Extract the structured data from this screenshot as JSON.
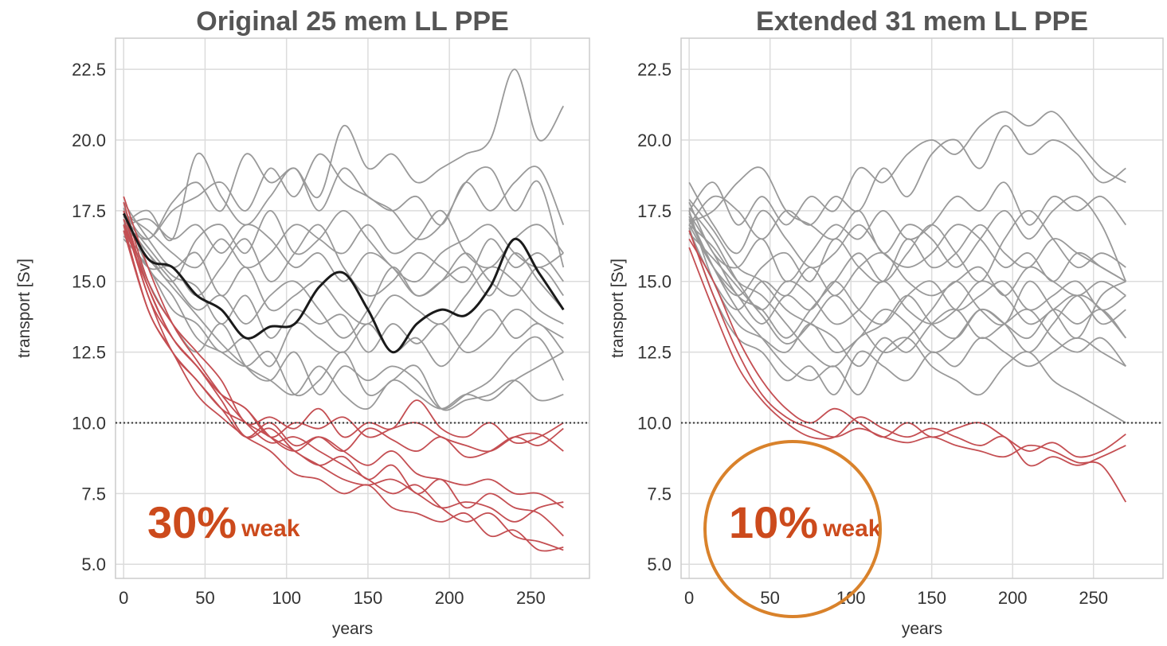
{
  "chart_data": [
    {
      "type": "line",
      "title": "Original 25 mem LL PPE",
      "xlabel": "years",
      "ylabel": "transport [Sv]",
      "annotation": "30%",
      "annotation_small": "weak",
      "hline": 10,
      "xlim": [
        -5,
        286
      ],
      "ylim": [
        4.5,
        23.6
      ],
      "xticks": [
        0,
        50,
        100,
        150,
        200,
        250
      ],
      "yticks": [
        {
          "value": 5,
          "label": "5.0"
        },
        7.5,
        {
          "value": 10,
          "label": "10.0"
        },
        12.5,
        {
          "value": 15,
          "label": "15.0"
        },
        17.5,
        {
          "value": 20,
          "label": "20.0"
        },
        22.5
      ],
      "grid": true,
      "x": [
        0,
        15,
        30,
        45,
        60,
        75,
        90,
        105,
        120,
        135,
        150,
        165,
        180,
        195,
        210,
        225,
        240,
        255,
        270
      ],
      "series": [
        {
          "color": "#999999",
          "values": [
            17.5,
            16.5,
            17.8,
            18.5,
            17.5,
            19.5,
            18.5,
            19.0,
            18.0,
            20.5,
            19.0,
            19.5,
            18.5,
            19.0,
            19.5,
            20.0,
            22.5,
            20.0,
            21.2
          ]
        },
        {
          "color": "#999999",
          "values": [
            17.0,
            17.5,
            16.5,
            19.5,
            18.0,
            17.0,
            18.0,
            19.0,
            17.5,
            19.0,
            18.0,
            17.5,
            16.5,
            17.0,
            18.5,
            19.0,
            17.5,
            18.5,
            15.5
          ]
        },
        {
          "color": "#999999",
          "values": [
            17.2,
            16.0,
            15.0,
            16.5,
            17.0,
            16.0,
            17.5,
            16.0,
            16.5,
            17.5,
            16.5,
            15.5,
            15.0,
            16.0,
            16.5,
            17.0,
            16.0,
            15.5,
            16.0
          ]
        },
        {
          "color": "#999999",
          "values": [
            16.8,
            15.5,
            15.5,
            14.5,
            15.5,
            16.5,
            15.0,
            16.0,
            17.0,
            15.5,
            14.5,
            15.0,
            16.0,
            15.5,
            15.0,
            16.5,
            15.5,
            16.0,
            15.0
          ]
        },
        {
          "color": "#999999",
          "values": [
            17.0,
            16.0,
            15.0,
            14.0,
            14.5,
            13.5,
            14.5,
            15.0,
            14.0,
            13.0,
            14.0,
            15.5,
            14.5,
            15.0,
            16.0,
            15.0,
            14.5,
            15.5,
            14.5
          ]
        },
        {
          "color": "#999999",
          "values": [
            16.5,
            15.5,
            14.0,
            13.5,
            12.5,
            13.0,
            12.0,
            13.5,
            13.0,
            12.5,
            13.5,
            12.5,
            13.0,
            12.0,
            13.0,
            14.0,
            13.0,
            13.5,
            12.5
          ]
        },
        {
          "color": "#999999",
          "values": [
            17.2,
            15.0,
            13.5,
            12.5,
            13.5,
            12.0,
            11.5,
            12.5,
            11.0,
            12.0,
            11.5,
            12.0,
            11.5,
            10.5,
            11.0,
            11.5,
            12.5,
            13.0,
            11.5
          ]
        },
        {
          "color": "#999999",
          "values": [
            16.6,
            15.8,
            14.8,
            13.8,
            12.8,
            12.0,
            11.5,
            11.0,
            12.0,
            11.0,
            10.5,
            11.5,
            11.0,
            10.5,
            11.0,
            10.8,
            11.5,
            12.0,
            12.5
          ]
        },
        {
          "color": "#999999",
          "values": [
            17.8,
            16.5,
            15.5,
            16.0,
            14.5,
            15.5,
            14.0,
            14.5,
            15.0,
            14.0,
            13.5,
            14.5,
            14.0,
            13.5,
            14.5,
            15.5,
            15.0,
            14.0,
            13.5
          ]
        },
        {
          "color": "#999999",
          "values": [
            17.4,
            16.8,
            16.0,
            15.5,
            16.5,
            15.5,
            16.0,
            17.0,
            16.5,
            16.0,
            17.0,
            16.0,
            16.5,
            17.5,
            16.0,
            15.5,
            16.5,
            17.0,
            16.0
          ]
        },
        {
          "color": "#999999",
          "values": [
            17.6,
            15.5,
            14.5,
            13.0,
            12.5,
            12.0,
            12.5,
            11.0,
            11.5,
            12.5,
            11.0,
            11.5,
            12.0,
            10.5,
            10.8,
            11.0,
            11.5,
            10.8,
            11.0
          ]
        },
        {
          "color": "#999999",
          "values": [
            17.0,
            16.5,
            17.5,
            18.0,
            18.5,
            17.5,
            19.0,
            18.0,
            19.5,
            18.5,
            18.0,
            17.5,
            18.0,
            17.0,
            18.5,
            17.5,
            18.5,
            19.0,
            17.0
          ]
        },
        {
          "color": "#999999",
          "values": [
            17.3,
            16.2,
            15.2,
            14.8,
            13.5,
            14.5,
            13.0,
            14.0,
            13.5,
            13.8,
            12.5,
            13.5,
            12.8,
            13.5,
            12.5,
            13.0,
            14.0,
            13.5,
            13.0
          ]
        },
        {
          "color": "#999999",
          "values": [
            16.9,
            17.2,
            16.5,
            17.0,
            16.0,
            17.0,
            16.5,
            15.5,
            16.0,
            15.0,
            16.0,
            15.5,
            14.5,
            15.0,
            15.5,
            14.5,
            16.0,
            15.0,
            14.0
          ]
        },
        {
          "color": "#c44e52",
          "values": [
            17.8,
            15.0,
            13.5,
            12.5,
            11.5,
            10.0,
            10.2,
            9.8,
            10.5,
            9.5,
            10.0,
            9.8,
            10.8,
            9.8,
            9.5,
            10.0,
            9.3,
            9.5,
            10.0
          ]
        },
        {
          "color": "#c44e52",
          "values": [
            17.5,
            14.8,
            13.0,
            12.0,
            11.0,
            10.5,
            9.5,
            10.0,
            9.8,
            10.2,
            9.5,
            9.8,
            10.0,
            9.5,
            9.2,
            9.0,
            9.5,
            9.6,
            9.0
          ]
        },
        {
          "color": "#c44e52",
          "values": [
            17.2,
            14.5,
            12.5,
            11.5,
            10.5,
            9.5,
            10.0,
            9.2,
            9.5,
            9.0,
            9.8,
            9.4,
            9.0,
            9.5,
            8.8,
            9.0,
            9.5,
            9.2,
            9.8
          ]
        },
        {
          "color": "#c44e52",
          "values": [
            17.0,
            14.8,
            13.0,
            12.0,
            11.0,
            10.5,
            9.5,
            9.0,
            9.5,
            9.0,
            8.5,
            9.0,
            8.2,
            8.0,
            7.8,
            8.0,
            7.5,
            7.5,
            7.0
          ]
        },
        {
          "color": "#c44e52",
          "values": [
            16.8,
            14.0,
            12.5,
            11.5,
            10.5,
            10.0,
            9.5,
            9.0,
            8.5,
            8.8,
            8.0,
            8.5,
            7.5,
            8.0,
            7.0,
            7.5,
            7.0,
            6.8,
            6.0
          ]
        },
        {
          "color": "#c44e52",
          "values": [
            17.5,
            14.5,
            13.0,
            12.0,
            10.8,
            9.5,
            9.8,
            9.0,
            8.5,
            8.0,
            7.8,
            8.0,
            7.5,
            7.0,
            7.2,
            7.0,
            6.5,
            7.0,
            7.2
          ]
        },
        {
          "color": "#c44e52",
          "values": [
            17.0,
            14.0,
            12.5,
            11.0,
            10.2,
            9.5,
            9.0,
            8.2,
            8.0,
            7.5,
            7.8,
            7.0,
            6.8,
            6.5,
            6.8,
            6.0,
            6.2,
            5.5,
            5.6
          ]
        },
        {
          "color": "#c44e52",
          "values": [
            18.0,
            15.5,
            13.5,
            12.2,
            11.0,
            10.0,
            9.3,
            9.5,
            9.0,
            8.5,
            8.0,
            7.5,
            7.8,
            7.0,
            6.5,
            6.8,
            6.0,
            5.8,
            5.5
          ]
        },
        {
          "color": "#1a1a1a",
          "values": [
            17.4,
            15.8,
            15.5,
            14.5,
            14.0,
            13.0,
            13.4,
            13.5,
            14.8,
            15.3,
            14.0,
            12.5,
            13.5,
            14.0,
            13.8,
            14.8,
            16.5,
            15.3,
            14.0
          ]
        }
      ]
    },
    {
      "type": "line",
      "title": "Extended 31 mem LL PPE",
      "xlabel": "years",
      "ylabel": "transport [Sv]",
      "annotation": "10%",
      "annotation_small": "weak",
      "hline": 10,
      "xlim": [
        -5,
        293
      ],
      "ylim": [
        4.5,
        23.6
      ],
      "xticks": [
        0,
        50,
        100,
        150,
        200,
        250
      ],
      "yticks": [
        {
          "value": 5,
          "label": "5.0"
        },
        7.5,
        {
          "value": 10,
          "label": "10.0"
        },
        12.5,
        {
          "value": 15,
          "label": "15.0"
        },
        17.5,
        {
          "value": 20,
          "label": "20.0"
        },
        22.5
      ],
      "grid": true,
      "x": [
        0,
        15,
        30,
        45,
        60,
        75,
        90,
        105,
        120,
        135,
        150,
        165,
        180,
        195,
        210,
        225,
        240,
        255,
        270
      ],
      "series": [
        {
          "color": "#999999",
          "values": [
            17.5,
            18.5,
            17.0,
            18.0,
            17.0,
            18.0,
            17.5,
            19.0,
            18.5,
            19.5,
            20.0,
            19.5,
            20.5,
            21.0,
            20.5,
            21.0,
            20.0,
            19.0,
            18.5
          ]
        },
        {
          "color": "#999999",
          "values": [
            17.0,
            18.0,
            17.5,
            16.5,
            17.5,
            17.0,
            18.0,
            17.5,
            19.0,
            18.0,
            19.5,
            20.0,
            19.0,
            20.5,
            19.5,
            20.0,
            19.5,
            18.5,
            19.0
          ]
        },
        {
          "color": "#999999",
          "values": [
            17.8,
            16.0,
            15.5,
            16.5,
            15.0,
            16.0,
            17.0,
            16.5,
            17.5,
            16.5,
            17.0,
            18.0,
            17.5,
            18.5,
            17.0,
            18.0,
            17.5,
            18.0,
            17.0
          ]
        },
        {
          "color": "#999999",
          "values": [
            17.2,
            15.5,
            14.5,
            15.5,
            16.0,
            15.0,
            16.5,
            15.5,
            15.0,
            16.5,
            15.5,
            16.0,
            17.0,
            16.0,
            15.5,
            16.5,
            16.0,
            15.5,
            15.0
          ]
        },
        {
          "color": "#999999",
          "values": [
            16.8,
            15.0,
            14.0,
            15.0,
            14.5,
            15.5,
            14.5,
            15.5,
            16.0,
            15.0,
            14.5,
            15.0,
            15.5,
            14.5,
            15.5,
            15.0,
            14.5,
            15.0,
            14.5
          ]
        },
        {
          "color": "#999999",
          "values": [
            17.0,
            15.5,
            14.5,
            13.5,
            14.5,
            14.0,
            15.0,
            14.0,
            13.5,
            14.5,
            15.0,
            14.0,
            14.5,
            15.0,
            14.0,
            14.5,
            15.0,
            14.0,
            14.5
          ]
        },
        {
          "color": "#999999",
          "values": [
            17.5,
            15.0,
            13.5,
            13.0,
            12.5,
            13.5,
            12.5,
            13.0,
            14.0,
            13.5,
            12.5,
            13.0,
            14.0,
            13.5,
            13.0,
            14.0,
            13.5,
            14.0,
            13.0
          ]
        },
        {
          "color": "#999999",
          "values": [
            16.9,
            14.5,
            13.0,
            12.5,
            11.5,
            12.0,
            11.0,
            12.5,
            12.0,
            11.5,
            12.5,
            12.0,
            13.0,
            12.5,
            12.0,
            12.5,
            13.0,
            12.5,
            12.0
          ]
        },
        {
          "color": "#999999",
          "values": [
            17.3,
            15.5,
            14.0,
            13.0,
            12.0,
            11.5,
            12.0,
            11.0,
            12.5,
            13.0,
            12.0,
            11.5,
            11.0,
            12.0,
            12.5,
            11.5,
            11.0,
            10.5,
            10.0
          ]
        },
        {
          "color": "#999999",
          "values": [
            18.5,
            17.0,
            16.0,
            17.5,
            16.5,
            15.5,
            16.0,
            17.0,
            16.0,
            15.5,
            16.0,
            17.0,
            16.5,
            15.5,
            16.0,
            15.0,
            16.0,
            15.5,
            15.0
          ]
        },
        {
          "color": "#999999",
          "values": [
            17.6,
            16.5,
            15.0,
            14.0,
            15.0,
            14.5,
            13.5,
            14.0,
            15.0,
            14.0,
            13.5,
            14.0,
            15.0,
            14.5,
            13.5,
            14.0,
            14.5,
            13.5,
            14.0
          ]
        },
        {
          "color": "#999999",
          "values": [
            17.1,
            17.5,
            18.5,
            19.0,
            17.5,
            17.0,
            16.5,
            17.5,
            16.0,
            17.0,
            16.5,
            15.5,
            16.5,
            17.5,
            16.5,
            17.5,
            18.0,
            17.0,
            15.0
          ]
        },
        {
          "color": "#999999",
          "values": [
            16.7,
            15.8,
            14.8,
            13.8,
            12.8,
            13.5,
            14.5,
            13.5,
            12.5,
            13.0,
            14.0,
            15.0,
            14.0,
            13.5,
            15.0,
            14.0,
            13.0,
            14.5,
            15.0
          ]
        },
        {
          "color": "#999999",
          "values": [
            17.4,
            16.0,
            14.5,
            14.0,
            13.0,
            14.0,
            15.0,
            16.0,
            15.0,
            16.0,
            17.0,
            16.0,
            15.0,
            16.5,
            17.5,
            16.5,
            15.5,
            16.0,
            15.5
          ]
        },
        {
          "color": "#999999",
          "values": [
            17.9,
            16.8,
            15.5,
            15.0,
            14.0,
            13.5,
            13.0,
            12.0,
            13.0,
            12.5,
            13.5,
            14.0,
            13.0,
            13.5,
            14.0,
            13.0,
            12.5,
            13.0,
            12.0
          ]
        },
        {
          "color": "#999999",
          "values": [
            17.0,
            16.2,
            15.0,
            14.5,
            13.5,
            12.5,
            12.0,
            13.0,
            13.5,
            14.5,
            13.5,
            13.0,
            14.0,
            13.5,
            12.5,
            13.5,
            14.5,
            14.0,
            13.0
          ]
        },
        {
          "color": "#c44e52",
          "values": [
            16.5,
            15.0,
            13.0,
            11.5,
            10.5,
            10.0,
            10.5,
            10.0,
            9.5,
            10.0,
            9.5,
            9.8,
            10.0,
            9.5,
            9.0,
            9.3,
            8.8,
            9.0,
            9.6
          ]
        },
        {
          "color": "#c44e52",
          "values": [
            16.8,
            14.5,
            12.5,
            11.0,
            10.2,
            9.8,
            9.5,
            9.8,
            9.5,
            9.3,
            9.5,
            9.2,
            9.0,
            8.8,
            9.2,
            9.0,
            8.6,
            8.5,
            7.2
          ]
        },
        {
          "color": "#c44e52",
          "values": [
            16.2,
            14.0,
            12.0,
            10.8,
            10.0,
            9.5,
            9.5,
            10.2,
            9.8,
            9.5,
            9.8,
            9.5,
            9.2,
            9.5,
            8.5,
            8.8,
            8.5,
            8.8,
            9.2
          ]
        }
      ]
    }
  ]
}
